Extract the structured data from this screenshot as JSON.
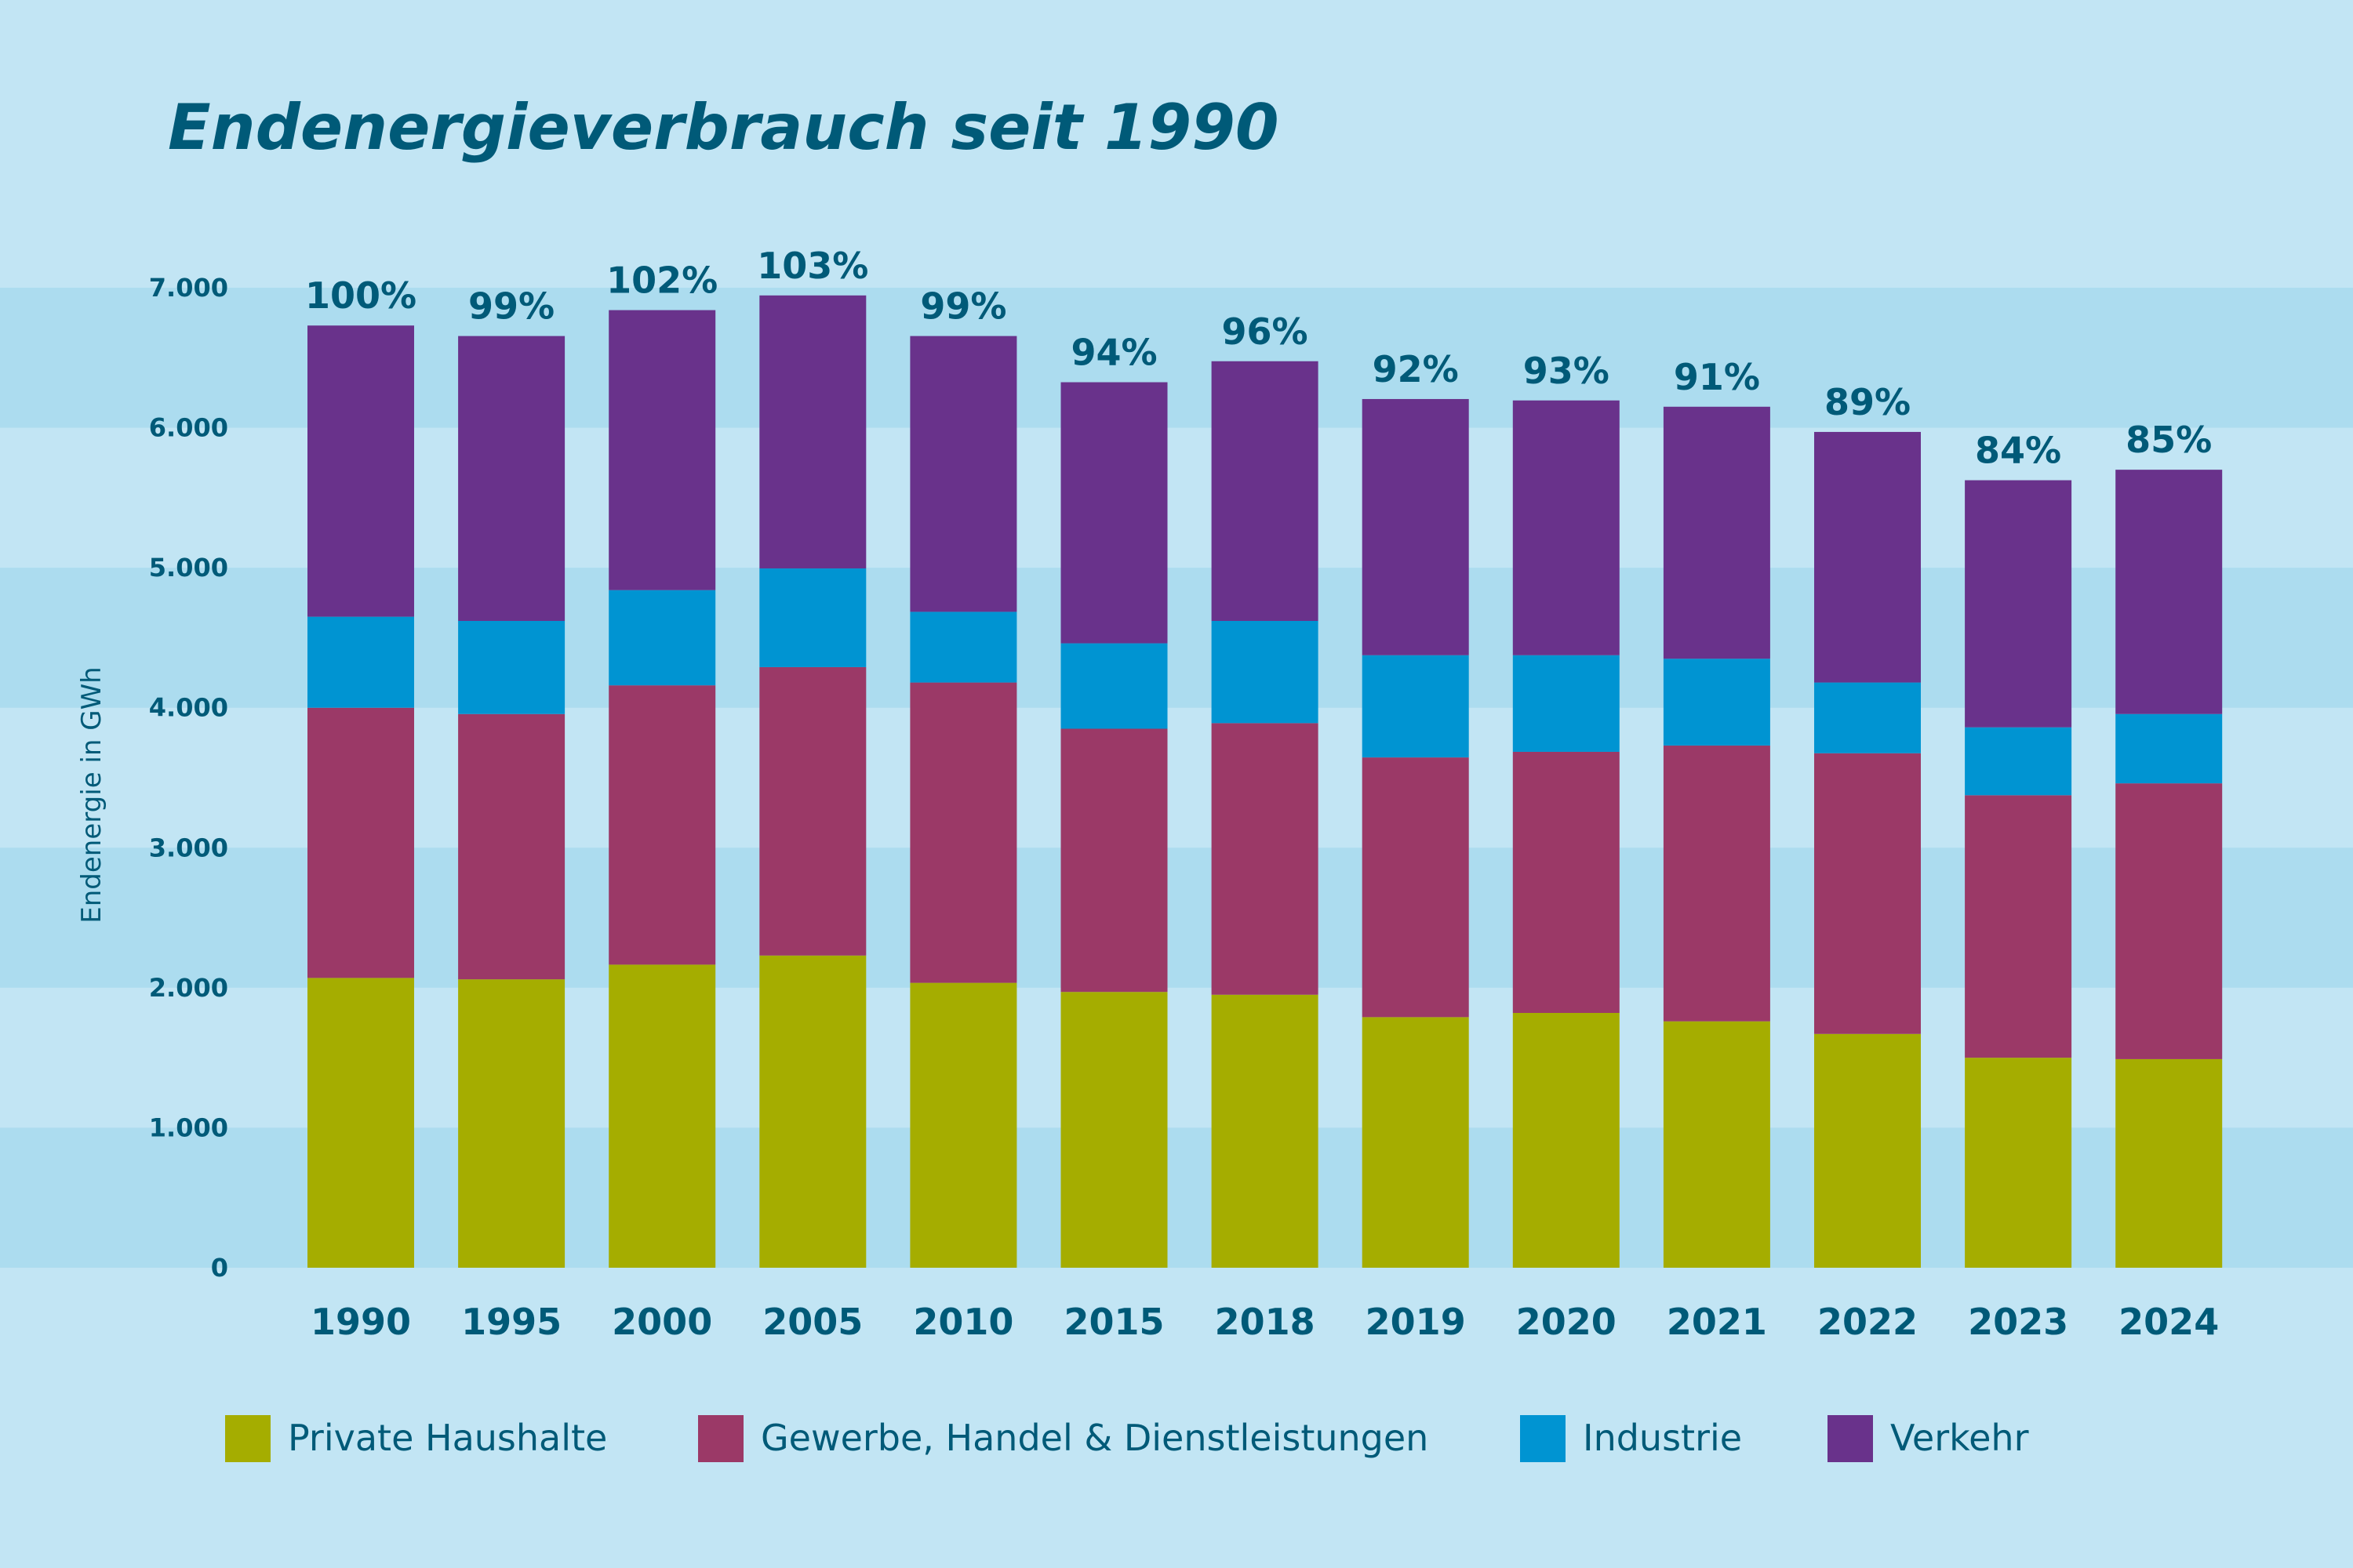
{
  "chart_data": {
    "type": "bar",
    "stacked": true,
    "title": "Endenergieverbrauch seit 1990",
    "xlabel": "",
    "ylabel": "Endenergie in GWh",
    "ylim": [
      0,
      7000
    ],
    "yticks": [
      "0",
      "1.000",
      "2.000",
      "3.000",
      "4.000",
      "5.000",
      "6.000",
      "7.000"
    ],
    "ytick_values": [
      0,
      1000,
      2000,
      3000,
      4000,
      5000,
      6000,
      7000
    ],
    "grid": "alternating horizontal bands",
    "legend_position": "bottom",
    "categories": [
      "1990",
      "1995",
      "2000",
      "2005",
      "2010",
      "2015",
      "2018",
      "2019",
      "2020",
      "2021",
      "2022",
      "2023",
      "2024"
    ],
    "bar_labels": [
      "100%",
      "99%",
      "102%",
      "103%",
      "99%",
      "94%",
      "96%",
      "92%",
      "93%",
      "91%",
      "89%",
      "84%",
      "85%"
    ],
    "series": [
      {
        "name": "Private Haushalte",
        "color": "#a5ad00",
        "values": [
          2070,
          2060,
          2165,
          2230,
          2035,
          1970,
          1950,
          1790,
          1820,
          1760,
          1670,
          1500,
          1490
        ]
      },
      {
        "name": "Gewerbe, Handel & Dienstleistungen",
        "color": "#9b3967",
        "values": [
          1930,
          1895,
          1995,
          2060,
          2145,
          1880,
          1940,
          1855,
          1865,
          1970,
          2005,
          1875,
          1970
        ]
      },
      {
        "name": "Industrie",
        "color": "#0094d2",
        "values": [
          650,
          665,
          680,
          705,
          505,
          610,
          730,
          730,
          690,
          620,
          505,
          485,
          495
        ]
      },
      {
        "name": "Verkehr",
        "color": "#69328b",
        "values": [
          2080,
          2035,
          2000,
          1950,
          1970,
          1865,
          1855,
          1830,
          1820,
          1800,
          1790,
          1765,
          1745
        ]
      }
    ]
  },
  "colors": {
    "background": "#c2e5f4",
    "band": "#acdcef",
    "text": "#005a78"
  }
}
